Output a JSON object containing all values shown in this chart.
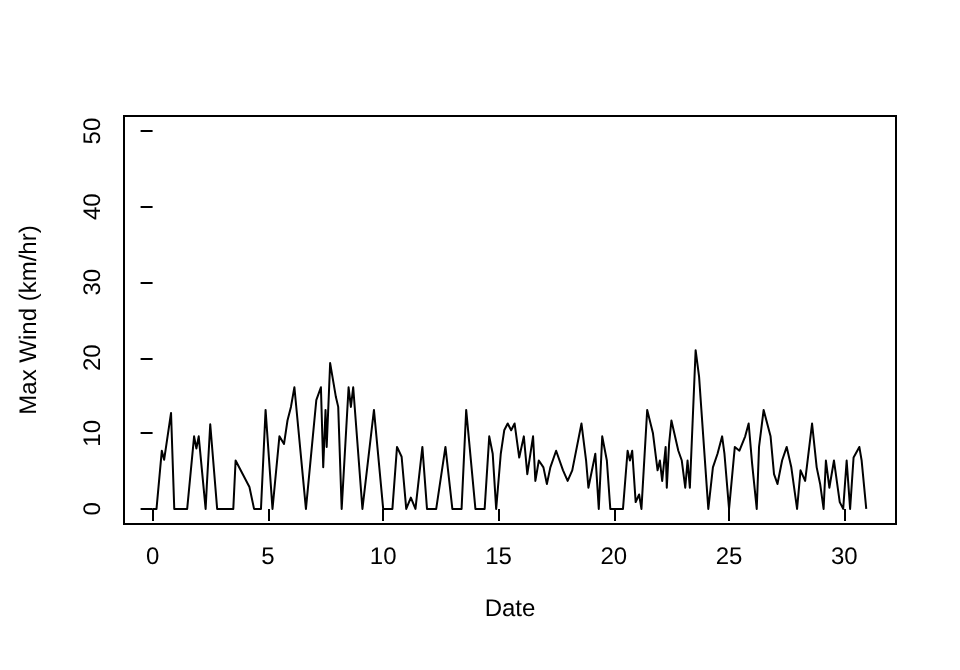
{
  "chart_data": {
    "type": "line",
    "xlabel": "Date",
    "ylabel": "Max Wind (km/hr)",
    "color": "#000000",
    "marker": "none",
    "line_style": "solid",
    "xlim": [
      -1.24,
      32.24
    ],
    "ylim": [
      -2,
      52
    ],
    "xticks": [
      0,
      5,
      10,
      15,
      20,
      25,
      30
    ],
    "yticks": [
      0,
      10,
      20,
      30,
      40,
      50
    ],
    "x": [
      0,
      0.17,
      0.4,
      0.5,
      0.8,
      0.94,
      1.5,
      1.8,
      1.9,
      2.0,
      2.3,
      2.35,
      2.5,
      2.8,
      3.5,
      3.6,
      4.2,
      4.4,
      4.7,
      4.9,
      5.2,
      5.5,
      5.7,
      5.85,
      6.0,
      6.15,
      6.65,
      7.1,
      7.3,
      7.4,
      7.5,
      7.55,
      7.7,
      7.95,
      8.05,
      8.2,
      8.5,
      8.6,
      8.7,
      9.1,
      9.6,
      10.0,
      10.4,
      10.6,
      10.8,
      11.0,
      11.2,
      11.4,
      11.7,
      11.9,
      12.3,
      12.7,
      13.0,
      13.4,
      13.6,
      14.0,
      14.4,
      14.6,
      14.75,
      14.9,
      15.1,
      15.25,
      15.4,
      15.55,
      15.7,
      15.9,
      16.1,
      16.25,
      16.5,
      16.6,
      16.75,
      16.95,
      17.1,
      17.25,
      17.5,
      17.8,
      18.0,
      18.2,
      18.6,
      18.8,
      18.9,
      19.2,
      19.35,
      19.5,
      19.7,
      19.85,
      20.4,
      20.6,
      20.7,
      20.8,
      20.95,
      21.1,
      21.2,
      21.45,
      21.7,
      21.9,
      22.0,
      22.1,
      22.25,
      22.3,
      22.4,
      22.5,
      22.8,
      22.95,
      23.1,
      23.2,
      23.3,
      23.55,
      23.7,
      23.8,
      24.1,
      24.3,
      24.5,
      24.7,
      24.8,
      25.0,
      25.25,
      25.45,
      25.7,
      25.85,
      26.0,
      26.2,
      26.3,
      26.5,
      26.8,
      26.95,
      27.1,
      27.3,
      27.5,
      27.7,
      27.95,
      28.1,
      28.3,
      28.6,
      28.8,
      28.95,
      29.1,
      29.2,
      29.35,
      29.55,
      29.8,
      29.95,
      30.1,
      30.25,
      30.4,
      30.65,
      30.75,
      30.95
    ],
    "values": [
      0,
      0,
      7.7,
      6.5,
      12.7,
      0,
      0,
      9.6,
      8,
      9.6,
      0,
      3,
      11.2,
      0,
      0,
      6.4,
      2.9,
      0,
      0,
      13.1,
      0,
      9.6,
      8.6,
      11.7,
      13.5,
      16.1,
      0,
      14.4,
      16.1,
      5.5,
      13.1,
      8.2,
      19.3,
      14.8,
      13.5,
      0,
      16.1,
      13.5,
      16.1,
      0,
      13.1,
      0,
      0,
      8.2,
      6.9,
      0,
      1.5,
      0,
      8.2,
      0,
      0,
      8.2,
      0,
      0,
      13.1,
      0,
      0,
      9.6,
      7.3,
      0,
      7.3,
      10.4,
      11.3,
      10.4,
      11.3,
      6.8,
      9.6,
      4.6,
      9.6,
      3.7,
      6.4,
      5.5,
      3.3,
      5.5,
      7.7,
      5.1,
      3.7,
      5.1,
      11.3,
      6.4,
      2.8,
      7.3,
      0,
      9.6,
      6.4,
      0,
      0,
      7.7,
      6.4,
      7.7,
      0.9,
      1.9,
      0,
      13.1,
      10.0,
      5.1,
      6.4,
      3.7,
      8.2,
      2.8,
      8.6,
      11.7,
      7.7,
      6.4,
      2.8,
      6.4,
      2.8,
      21.0,
      17.5,
      13.1,
      0,
      5.5,
      7.3,
      9.6,
      7.3,
      0,
      8.2,
      7.7,
      9.6,
      11.3,
      6.0,
      0,
      8.2,
      13.1,
      9.6,
      4.6,
      3.3,
      6.4,
      8.2,
      5.5,
      0,
      5.1,
      3.7,
      11.3,
      5.5,
      3.3,
      0,
      6.4,
      2.8,
      6.4,
      0.9,
      0,
      6.4,
      0,
      6.8,
      8.2,
      6.4,
      0
    ]
  }
}
